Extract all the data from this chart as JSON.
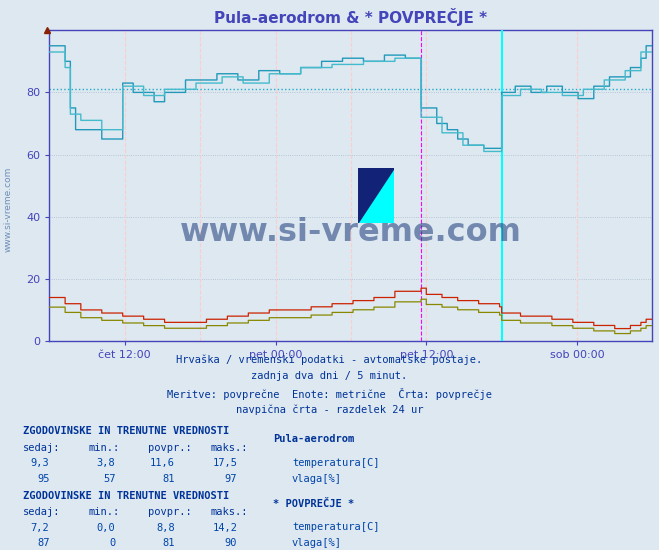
{
  "title": "Pula-aerodrom & * POVPREČJE *",
  "bg_color": "#dde8f0",
  "plot_bg_color": "#dde8f0",
  "ylim": [
    0,
    100
  ],
  "yticks": [
    0,
    20,
    40,
    60,
    80
  ],
  "xlim": [
    0,
    576
  ],
  "xtick_positions": [
    72,
    216,
    360,
    504
  ],
  "xtick_labels": [
    "čet 12:00",
    "pet 00:00",
    "pet 12:00",
    "sob 00:00"
  ],
  "vgrid_positions": [
    72,
    144,
    216,
    288,
    360,
    432,
    504
  ],
  "vline_magenta_x": 355,
  "vline_cyan_x": 432,
  "hline_dotted_y": 81,
  "watermark": "www.si-vreme.com",
  "subtitle_lines": [
    "Hrvaška / vremenski podatki - avtomatske postaje.",
    "zadnja dva dni / 5 minut.",
    "Meritve: povprečne  Enote: metrične  Črta: povprečje",
    "navpična črta - razdelek 24 ur"
  ],
  "table1_title": "ZGODOVINSKE IN TRENUTNE VREDNOSTI",
  "table1_station": "Pula-aerodrom",
  "table1_rows": [
    [
      "9,3",
      "3,8",
      "11,6",
      "17,5",
      "#cc0000",
      "temperatura[C]"
    ],
    [
      "95",
      "57",
      "81",
      "97",
      "#44bbcc",
      "vlaga[%]"
    ]
  ],
  "table2_title": "ZGODOVINSKE IN TRENUTNE VREDNOSTI",
  "table2_station": "* POVPREČJE *",
  "table2_rows": [
    [
      "7,2",
      "0,0",
      "8,8",
      "14,2",
      "#888800",
      "temperatura[C]"
    ],
    [
      "87",
      "0",
      "81",
      "90",
      "#44ccdd",
      "vlaga[%]"
    ]
  ],
  "line_vlaga1_color": "#2299bb",
  "line_temp1_color": "#cc2200",
  "line_vlaga2_color": "#44bbcc",
  "line_temp2_color": "#888800",
  "axis_color": "#4444bb",
  "grid_color_h": "#aabbcc",
  "grid_color_v": "#ffcccc",
  "dot_hline_color": "#22aacc",
  "text_color": "#003399",
  "table_text_color": "#0044aa",
  "watermark_color": "#1a3a7a"
}
